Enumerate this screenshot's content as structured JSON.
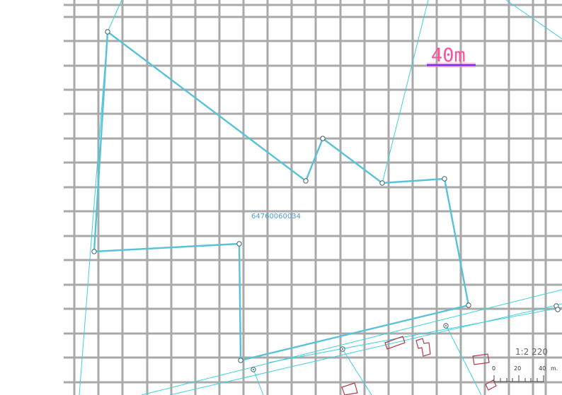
{
  "map": {
    "parcel_id": "64760060034",
    "measurement_label": "40m",
    "scale_ratio": "1:2 220",
    "scale_bar": {
      "ticks": [
        "0",
        "20",
        "40"
      ],
      "unit": "m."
    },
    "colors": {
      "grid": "#a9a9a9",
      "parcel_boundary": "#58c2d8",
      "cadastral_lines": "#3fd0de",
      "buildings": "#b3394c",
      "measure_text": "#ff4f9e",
      "measure_line": "#7a2cf0"
    }
  }
}
